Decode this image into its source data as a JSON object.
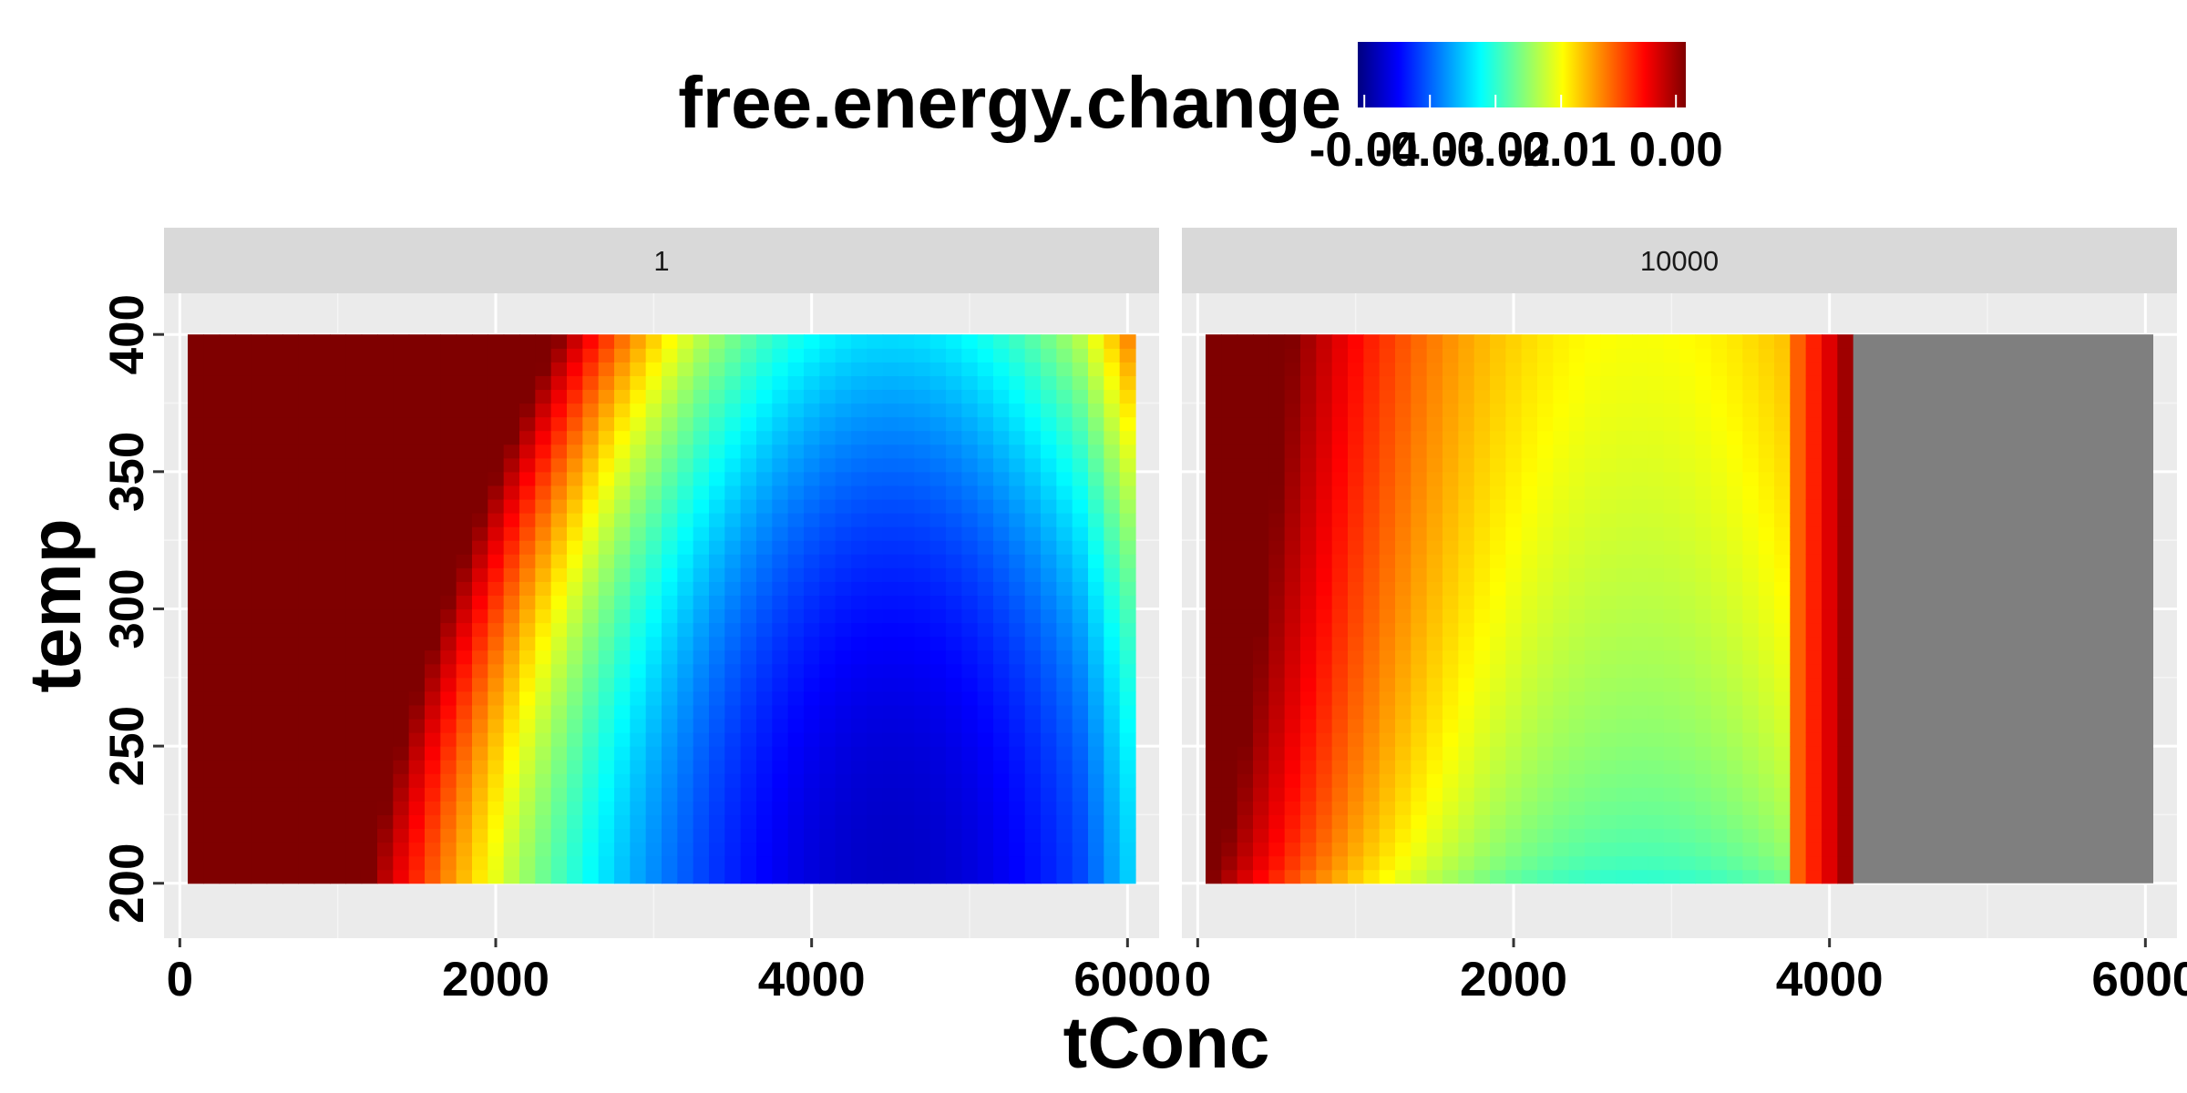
{
  "chart_data": {
    "type": "heatmap",
    "xlabel": "tConc",
    "ylabel": "temp",
    "xlim": [
      -100,
      6200
    ],
    "ylim": [
      180,
      415
    ],
    "x_ticks": [
      0,
      2000,
      4000,
      6000
    ],
    "y_ticks": [
      200,
      250,
      300,
      350,
      400
    ],
    "grid": true,
    "legend": {
      "title": "free.energy.change",
      "position": "top",
      "tick_labels": [
        "-0.04",
        "-0.03",
        "-0.02",
        "-0.01",
        "0.00"
      ],
      "colors": [
        "#00007F",
        "#0000FF",
        "#007FFF",
        "#00FFFF",
        "#7FFF7F",
        "#FFFF00",
        "#FF7F00",
        "#FF0000",
        "#7F0000"
      ]
    },
    "panels": [
      {
        "label": "1",
        "x_range": [
          50,
          6050
        ],
        "y_range": [
          200,
          400
        ],
        "na_x_from": null,
        "minimum_at": {
          "tConc": 4500,
          "temp": 200
        }
      },
      {
        "label": "10000",
        "x_range": [
          50,
          6050
        ],
        "y_range": [
          200,
          400
        ],
        "na_x_from": 4150,
        "na_color": "#7F7F7F",
        "local_low_at": {
          "tConc": 2800,
          "temp": 200
        }
      }
    ]
  }
}
